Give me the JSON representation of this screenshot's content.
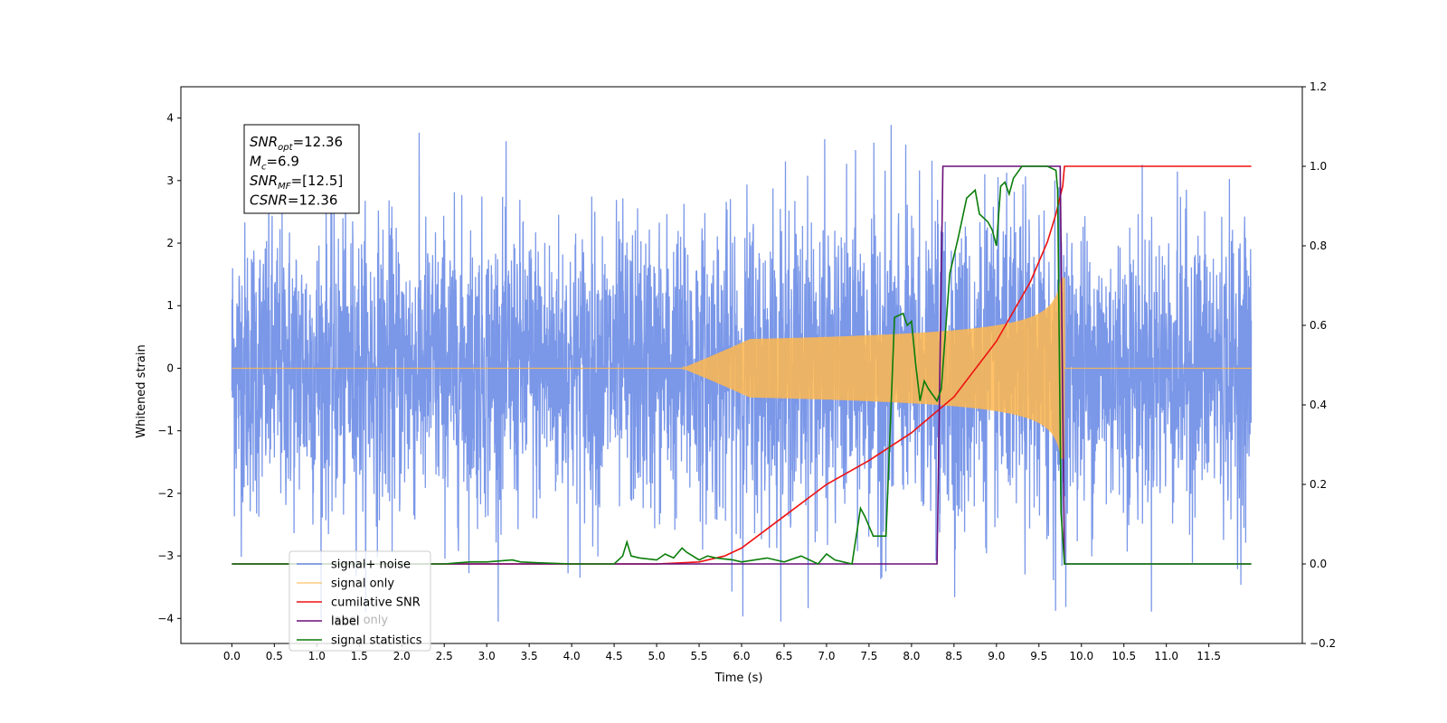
{
  "chart_data": {
    "type": "line",
    "xlabel": "Time (s)",
    "ylabel": "Whitened strain",
    "xlim": [
      -0.6,
      12.6
    ],
    "ylim_left": [
      -4.4,
      4.5
    ],
    "ylim_right": [
      -0.2,
      1.2
    ],
    "x_ticks": [
      "0.0",
      "0.5",
      "1.0",
      "1.5",
      "2.0",
      "2.5",
      "3.0",
      "3.5",
      "4.0",
      "4.5",
      "5.0",
      "5.5",
      "6.0",
      "6.5",
      "7.0",
      "7.5",
      "8.0",
      "8.5",
      "9.0",
      "9.5",
      "10.0",
      "10.5",
      "11.0",
      "11.5"
    ],
    "y_ticks_left": [
      "4",
      "3",
      "2",
      "1",
      "0",
      "−1",
      "−2",
      "−3",
      "−4"
    ],
    "y_ticks_right": [
      "1.2",
      "1.0",
      "0.8",
      "0.6",
      "0.4",
      "0.2",
      "0.0",
      "−0.2"
    ],
    "annotation": [
      {
        "base": "SNR",
        "sub": "opt",
        "value": "=12.36"
      },
      {
        "base": "M",
        "sub": "c",
        "value": "=6.9"
      },
      {
        "base": "SNR",
        "sub": "MF",
        "value": "=[12.5]"
      },
      {
        "base": "CSNR",
        "sub": "",
        "value": "=12.36"
      }
    ],
    "legend": {
      "placement": "lower-left",
      "entries": [
        "signal+ noise",
        "signal only",
        "cumilative SNR",
        "label",
        "signal statistics"
      ],
      "hidden_entries": [
        "label only"
      ]
    },
    "series": [
      {
        "name": "signal+ noise",
        "axis": "left",
        "color": "#6b8ce5",
        "x_range": [
          0.0,
          12.0
        ],
        "amplitude_sigma": 1.0,
        "y_max": 4.15,
        "y_min": -4.05
      },
      {
        "name": "signal only",
        "axis": "left",
        "color": "#ffb74d",
        "chirp_start": 5.3,
        "chirp_end": 9.8,
        "peak_amplitude": 1.45
      },
      {
        "name": "cumilative SNR",
        "axis": "right",
        "color": "#ee1111",
        "x": [
          0.0,
          5.0,
          5.5,
          5.8,
          6.0,
          6.5,
          7.0,
          7.5,
          8.0,
          8.5,
          9.0,
          9.4,
          9.6,
          9.7,
          9.78,
          9.8,
          12.0
        ],
        "y": [
          0.0,
          0.0,
          0.005,
          0.02,
          0.04,
          0.12,
          0.2,
          0.26,
          0.33,
          0.42,
          0.56,
          0.71,
          0.81,
          0.88,
          0.95,
          1.0,
          1.0
        ]
      },
      {
        "name": "label",
        "axis": "right",
        "color": "#6a0f78",
        "x": [
          0.0,
          8.3,
          8.37,
          9.75,
          9.8,
          12.0
        ],
        "y": [
          0.0,
          0.0,
          1.0,
          1.0,
          0.0,
          0.0
        ]
      },
      {
        "name": "signal statistics",
        "axis": "right",
        "color": "#0a7d0a",
        "x": [
          0.0,
          2.5,
          2.8,
          3.0,
          3.3,
          3.4,
          3.6,
          4.0,
          4.5,
          4.6,
          4.65,
          4.7,
          4.8,
          5.0,
          5.1,
          5.2,
          5.3,
          5.35,
          5.5,
          5.6,
          5.7,
          5.9,
          6.0,
          6.3,
          6.5,
          6.7,
          6.9,
          7.0,
          7.1,
          7.3,
          7.4,
          7.45,
          7.55,
          7.7,
          7.8,
          7.9,
          7.95,
          8.0,
          8.05,
          8.1,
          8.15,
          8.2,
          8.3,
          8.35,
          8.45,
          8.55,
          8.65,
          8.75,
          8.8,
          8.9,
          8.95,
          9.0,
          9.05,
          9.1,
          9.15,
          9.2,
          9.3,
          9.4,
          9.5,
          9.6,
          9.7,
          9.72,
          9.76,
          9.8,
          9.85,
          12.0
        ],
        "y": [
          0.0,
          0.0,
          0.005,
          0.005,
          0.01,
          0.005,
          0.003,
          0.0,
          0.0,
          0.02,
          0.055,
          0.02,
          0.015,
          0.01,
          0.025,
          0.015,
          0.04,
          0.03,
          0.01,
          0.02,
          0.015,
          0.01,
          0.005,
          0.015,
          0.005,
          0.02,
          0.0,
          0.025,
          0.01,
          0.0,
          0.14,
          0.12,
          0.07,
          0.07,
          0.62,
          0.63,
          0.6,
          0.61,
          0.5,
          0.41,
          0.46,
          0.44,
          0.41,
          0.44,
          0.73,
          0.82,
          0.92,
          0.94,
          0.88,
          0.86,
          0.84,
          0.8,
          0.95,
          0.96,
          0.93,
          0.97,
          1.0,
          1.0,
          1.0,
          1.0,
          0.99,
          0.94,
          0.13,
          0.0,
          0.0,
          0.0
        ]
      }
    ]
  }
}
